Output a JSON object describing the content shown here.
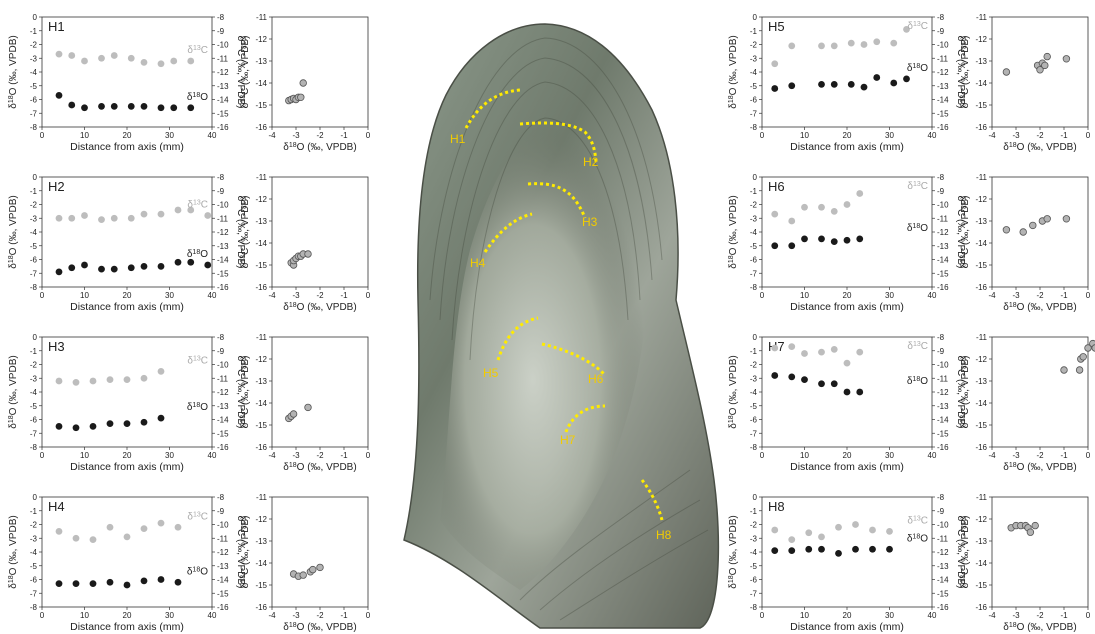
{
  "figure": {
    "style": {
      "d18o_color": "#1a1a1a",
      "d13c_color": "#bdbdbd",
      "cross_marker_fill": "#b3b3b3",
      "cross_marker_stroke": "#555555",
      "hiatus_line_color": "#ffeb00",
      "hiatus_label_color": "#f2cc00"
    },
    "specimen_photo": {
      "description_icon": "stalagmite-section-photo",
      "hiatus_labels": [
        "H1",
        "H2",
        "H3",
        "H4",
        "H5",
        "H6",
        "H7",
        "H8"
      ]
    }
  },
  "chart_data": [
    {
      "type": "scatter",
      "panel": "profile",
      "title": "H1",
      "xlabel": "Distance from axis (mm)",
      "ylabel": "δ18O (‰, VPDB)",
      "y2label": "δ13C (‰, VPDB)",
      "xlim": [
        0,
        40
      ],
      "xticks": [
        0,
        10,
        20,
        30,
        40
      ],
      "ylim": [
        -8,
        0
      ],
      "yticks": [
        0,
        -1,
        -2,
        -3,
        -4,
        -5,
        -6,
        -7,
        -8
      ],
      "y2lim": [
        -16,
        -8
      ],
      "y2ticks": [
        -8,
        -9,
        -10,
        -11,
        -12,
        -13,
        -14,
        -15,
        -16
      ],
      "series": [
        {
          "name": "δ18O",
          "axis": "y",
          "x": [
            4,
            7,
            10,
            14,
            17,
            21,
            24,
            28,
            31,
            35
          ],
          "values": [
            -5.7,
            -6.4,
            -6.6,
            -6.5,
            -6.5,
            -6.5,
            -6.5,
            -6.6,
            -6.6,
            -6.6
          ]
        },
        {
          "name": "δ13C",
          "axis": "y2",
          "x": [
            4,
            7,
            10,
            14,
            17,
            21,
            24,
            28,
            31,
            35
          ],
          "values": [
            -10.7,
            -10.8,
            -11.2,
            -11.0,
            -10.8,
            -11.0,
            -11.3,
            -11.4,
            -11.2,
            -11.2
          ]
        }
      ]
    },
    {
      "type": "scatter",
      "panel": "cross",
      "title": "",
      "xlabel": "δ18O (‰, VPDB)",
      "ylabel": "δ13C (‰, VPDB)",
      "xlim": [
        -4,
        0
      ],
      "xticks": [
        -4,
        -3,
        -2,
        -1,
        0
      ],
      "ylim": [
        -16,
        -11
      ],
      "yticks": [
        -11,
        -12,
        -13,
        -14,
        -15,
        -16
      ],
      "points": [
        [
          -3.3,
          -14.8
        ],
        [
          -3.2,
          -14.75
        ],
        [
          -3.1,
          -14.7
        ],
        [
          -3.0,
          -14.75
        ],
        [
          -2.9,
          -14.65
        ],
        [
          -2.8,
          -14.65
        ],
        [
          -2.7,
          -14.0
        ]
      ]
    },
    {
      "type": "scatter",
      "panel": "profile",
      "title": "H2",
      "xlabel": "Distance from axis (mm)",
      "ylabel": "δ18O (‰, VPDB)",
      "y2label": "δ13C (‰, VPDB)",
      "xlim": [
        0,
        40
      ],
      "xticks": [
        0,
        10,
        20,
        30,
        40
      ],
      "ylim": [
        -8,
        0
      ],
      "yticks": [
        0,
        -1,
        -2,
        -3,
        -4,
        -5,
        -6,
        -7,
        -8
      ],
      "y2lim": [
        -16,
        -8
      ],
      "y2ticks": [
        -8,
        -9,
        -10,
        -11,
        -12,
        -13,
        -14,
        -15,
        -16
      ],
      "series": [
        {
          "name": "δ18O",
          "axis": "y",
          "x": [
            4,
            7,
            10,
            14,
            17,
            21,
            24,
            28,
            32,
            35,
            39
          ],
          "values": [
            -6.9,
            -6.6,
            -6.4,
            -6.7,
            -6.7,
            -6.6,
            -6.5,
            -6.5,
            -6.2,
            -6.2,
            -6.4
          ]
        },
        {
          "name": "δ13C",
          "axis": "y2",
          "x": [
            4,
            7,
            10,
            14,
            17,
            21,
            24,
            28,
            32,
            35,
            39
          ],
          "values": [
            -11.0,
            -11.0,
            -10.8,
            -11.1,
            -11.0,
            -11.0,
            -10.7,
            -10.7,
            -10.4,
            -10.4,
            -10.8
          ]
        }
      ]
    },
    {
      "type": "scatter",
      "panel": "cross",
      "title": "",
      "xlabel": "δ18O (‰, VPDB)",
      "ylabel": "δ13C (‰, VPDB)",
      "xlim": [
        -4,
        0
      ],
      "xticks": [
        -4,
        -3,
        -2,
        -1,
        0
      ],
      "ylim": [
        -16,
        -11
      ],
      "yticks": [
        -11,
        -12,
        -13,
        -14,
        -15,
        -16
      ],
      "points": [
        [
          -3.2,
          -14.9
        ],
        [
          -3.1,
          -15.0
        ],
        [
          -3.1,
          -14.8
        ],
        [
          -3.0,
          -14.7
        ],
        [
          -2.9,
          -14.6
        ],
        [
          -2.8,
          -14.6
        ],
        [
          -2.7,
          -14.5
        ],
        [
          -2.5,
          -14.5
        ]
      ]
    },
    {
      "type": "scatter",
      "panel": "profile",
      "title": "H3",
      "xlabel": "Distance from axis (mm)",
      "ylabel": "δ18O (‰, VPDB)",
      "y2label": "δ13C (‰, VPDB)",
      "xlim": [
        0,
        40
      ],
      "xticks": [
        0,
        10,
        20,
        30,
        40
      ],
      "ylim": [
        -8,
        0
      ],
      "yticks": [
        0,
        -1,
        -2,
        -3,
        -4,
        -5,
        -6,
        -7,
        -8
      ],
      "y2lim": [
        -16,
        -8
      ],
      "y2ticks": [
        -8,
        -9,
        -10,
        -11,
        -12,
        -13,
        -14,
        -15,
        -16
      ],
      "series": [
        {
          "name": "δ18O",
          "axis": "y",
          "x": [
            4,
            8,
            12,
            16,
            20,
            24,
            28
          ],
          "values": [
            -6.5,
            -6.6,
            -6.5,
            -6.3,
            -6.3,
            -6.2,
            -5.9
          ]
        },
        {
          "name": "δ13C",
          "axis": "y2",
          "x": [
            4,
            8,
            12,
            16,
            20,
            24,
            28
          ],
          "values": [
            -11.2,
            -11.3,
            -11.2,
            -11.1,
            -11.1,
            -11.0,
            -10.5
          ]
        }
      ]
    },
    {
      "type": "scatter",
      "panel": "cross",
      "title": "",
      "xlabel": "δ18O (‰, VPDB)",
      "ylabel": "δ13C (‰, VPDB)",
      "xlim": [
        -4,
        0
      ],
      "xticks": [
        -4,
        -3,
        -2,
        -1,
        0
      ],
      "ylim": [
        -16,
        -11
      ],
      "yticks": [
        -11,
        -12,
        -13,
        -14,
        -15,
        -16
      ],
      "points": [
        [
          -3.3,
          -14.7
        ],
        [
          -3.2,
          -14.6
        ],
        [
          -3.1,
          -14.5
        ],
        [
          -2.5,
          -14.2
        ]
      ]
    },
    {
      "type": "scatter",
      "panel": "profile",
      "title": "H4",
      "xlabel": "Distance from axis (mm)",
      "ylabel": "δ18O (‰, VPDB)",
      "y2label": "δ13C (‰, VPDB)",
      "xlim": [
        0,
        40
      ],
      "xticks": [
        0,
        10,
        20,
        30,
        40
      ],
      "ylim": [
        -8,
        0
      ],
      "yticks": [
        0,
        -1,
        -2,
        -3,
        -4,
        -5,
        -6,
        -7,
        -8
      ],
      "y2lim": [
        -16,
        -8
      ],
      "y2ticks": [
        -8,
        -9,
        -10,
        -11,
        -12,
        -13,
        -14,
        -15,
        -16
      ],
      "series": [
        {
          "name": "δ18O",
          "axis": "y",
          "x": [
            4,
            8,
            12,
            16,
            20,
            24,
            28,
            32
          ],
          "values": [
            -6.3,
            -6.3,
            -6.3,
            -6.2,
            -6.4,
            -6.1,
            -6.0,
            -6.2
          ]
        },
        {
          "name": "δ13C",
          "axis": "y2",
          "x": [
            4,
            8,
            12,
            16,
            20,
            24,
            28,
            32
          ],
          "values": [
            -10.5,
            -11.0,
            -11.1,
            -10.2,
            -10.9,
            -10.3,
            -9.9,
            -10.2
          ]
        }
      ]
    },
    {
      "type": "scatter",
      "panel": "cross",
      "title": "",
      "xlabel": "δ18O (‰, VPDB)",
      "ylabel": "δ13C (‰, VPDB)",
      "xlim": [
        -4,
        0
      ],
      "xticks": [
        -4,
        -3,
        -2,
        -1,
        0
      ],
      "ylim": [
        -16,
        -11
      ],
      "yticks": [
        -11,
        -12,
        -13,
        -14,
        -15,
        -16
      ],
      "points": [
        [
          -3.1,
          -14.5
        ],
        [
          -2.9,
          -14.6
        ],
        [
          -2.7,
          -14.55
        ],
        [
          -2.4,
          -14.4
        ],
        [
          -2.3,
          -14.3
        ],
        [
          -2.0,
          -14.2
        ]
      ]
    },
    {
      "type": "scatter",
      "panel": "profile",
      "title": "H5",
      "xlabel": "Distance from axis (mm)",
      "ylabel": "δ18O (‰, VPDB)",
      "y2label": "δ13C (‰, VPDB)",
      "xlim": [
        0,
        40
      ],
      "xticks": [
        0,
        10,
        20,
        30,
        40
      ],
      "ylim": [
        -8,
        0
      ],
      "yticks": [
        0,
        -1,
        -2,
        -3,
        -4,
        -5,
        -6,
        -7,
        -8
      ],
      "y2lim": [
        -16,
        -8
      ],
      "y2ticks": [
        -8,
        -9,
        -10,
        -11,
        -12,
        -13,
        -14,
        -15,
        -16
      ],
      "series": [
        {
          "name": "δ18O",
          "axis": "y",
          "x": [
            3,
            7,
            14,
            17,
            21,
            24,
            27,
            31,
            34
          ],
          "values": [
            -5.2,
            -5.0,
            -4.9,
            -4.9,
            -4.9,
            -5.1,
            -4.4,
            -4.8,
            -4.5
          ]
        },
        {
          "name": "δ13C",
          "axis": "y2",
          "x": [
            3,
            7,
            14,
            17,
            21,
            24,
            27,
            31,
            34
          ],
          "values": [
            -11.4,
            -10.1,
            -10.1,
            -10.1,
            -9.9,
            -10.0,
            -9.8,
            -9.9,
            -8.9
          ]
        }
      ]
    },
    {
      "type": "scatter",
      "panel": "cross",
      "title": "",
      "xlabel": "δ18O (‰, VPDB)",
      "ylabel": "δ13C (‰, VPDB)",
      "xlim": [
        -4,
        0
      ],
      "xticks": [
        -4,
        -3,
        -2,
        -1,
        0
      ],
      "ylim": [
        -16,
        -11
      ],
      "yticks": [
        -11,
        -12,
        -13,
        -14,
        -15,
        -16
      ],
      "points": [
        [
          -3.4,
          -13.5
        ],
        [
          -2.1,
          -13.2
        ],
        [
          -2.0,
          -13.4
        ],
        [
          -1.9,
          -13.1
        ],
        [
          -1.8,
          -13.2
        ],
        [
          -1.7,
          -12.8
        ],
        [
          -0.9,
          -12.9
        ]
      ]
    },
    {
      "type": "scatter",
      "panel": "profile",
      "title": "H6",
      "xlabel": "Distance from axis (mm)",
      "ylabel": "δ18O (‰, VPDB)",
      "y2label": "δ13C (‰, VPDB)",
      "xlim": [
        0,
        40
      ],
      "xticks": [
        0,
        10,
        20,
        30,
        40
      ],
      "ylim": [
        -8,
        0
      ],
      "yticks": [
        0,
        -1,
        -2,
        -3,
        -4,
        -5,
        -6,
        -7,
        -8
      ],
      "y2lim": [
        -16,
        -8
      ],
      "y2ticks": [
        -8,
        -9,
        -10,
        -11,
        -12,
        -13,
        -14,
        -15,
        -16
      ],
      "series": [
        {
          "name": "δ18O",
          "axis": "y",
          "x": [
            3,
            7,
            10,
            14,
            17,
            20,
            23
          ],
          "values": [
            -5.0,
            -5.0,
            -4.5,
            -4.5,
            -4.7,
            -4.6,
            -4.5
          ]
        },
        {
          "name": "δ13C",
          "axis": "y2",
          "x": [
            3,
            7,
            10,
            14,
            17,
            20,
            23
          ],
          "values": [
            -10.7,
            -11.2,
            -10.2,
            -10.2,
            -10.5,
            -10.0,
            -9.2
          ]
        }
      ]
    },
    {
      "type": "scatter",
      "panel": "cross",
      "title": "",
      "xlabel": "δ18O (‰, VPDB)",
      "ylabel": "δ13C (‰, VPDB)",
      "xlim": [
        -4,
        0
      ],
      "xticks": [
        -4,
        -3,
        -2,
        -1,
        0
      ],
      "ylim": [
        -16,
        -11
      ],
      "yticks": [
        -11,
        -12,
        -13,
        -14,
        -15,
        -16
      ],
      "points": [
        [
          -3.4,
          -13.4
        ],
        [
          -2.7,
          -13.5
        ],
        [
          -2.3,
          -13.2
        ],
        [
          -1.9,
          -13.0
        ],
        [
          -1.7,
          -12.9
        ],
        [
          -0.9,
          -12.9
        ]
      ]
    },
    {
      "type": "scatter",
      "panel": "profile",
      "title": "H7",
      "xlabel": "Distance from axis (mm)",
      "ylabel": "δ18O (‰, VPDB)",
      "y2label": "δ13C (‰, VPDB)",
      "xlim": [
        0,
        40
      ],
      "xticks": [
        0,
        10,
        20,
        30,
        40
      ],
      "ylim": [
        -8,
        0
      ],
      "yticks": [
        0,
        -1,
        -2,
        -3,
        -4,
        -5,
        -6,
        -7,
        -8
      ],
      "y2lim": [
        -16,
        -8
      ],
      "y2ticks": [
        -8,
        -9,
        -10,
        -11,
        -12,
        -13,
        -14,
        -15,
        -16
      ],
      "series": [
        {
          "name": "δ18O",
          "axis": "y",
          "x": [
            3,
            7,
            10,
            14,
            17,
            20,
            23
          ],
          "values": [
            -2.8,
            -2.9,
            -3.1,
            -3.4,
            -3.4,
            -4.0,
            -4.0
          ]
        },
        {
          "name": "δ13C",
          "axis": "y2",
          "x": [
            3,
            7,
            10,
            14,
            17,
            20,
            23
          ],
          "values": [
            -8.8,
            -8.7,
            -9.2,
            -9.1,
            -8.9,
            -9.9,
            -9.1
          ]
        }
      ]
    },
    {
      "type": "scatter",
      "panel": "cross",
      "title": "",
      "xlabel": "δ18O (‰, VPDB)",
      "ylabel": "δ13C (‰, VPDB)",
      "xlim": [
        -4,
        0
      ],
      "xticks": [
        -4,
        -3,
        -2,
        -1,
        0
      ],
      "ylim": [
        -16,
        -11
      ],
      "yticks": [
        -11,
        -12,
        -13,
        -14,
        -15,
        -16
      ],
      "points": [
        [
          -1.0,
          -12.5
        ],
        [
          -0.35,
          -12.5
        ],
        [
          -0.3,
          -12.0
        ],
        [
          -0.2,
          -11.9
        ],
        [
          0.0,
          -11.5
        ],
        [
          0.2,
          -11.3
        ],
        [
          0.3,
          -11.5
        ]
      ]
    },
    {
      "type": "scatter",
      "panel": "profile",
      "title": "H8",
      "xlabel": "Distance from axis (mm)",
      "ylabel": "δ18O (‰, VPDB)",
      "y2label": "δ13C (‰, VPDB)",
      "xlim": [
        0,
        40
      ],
      "xticks": [
        0,
        10,
        20,
        30,
        40
      ],
      "ylim": [
        -8,
        0
      ],
      "yticks": [
        0,
        -1,
        -2,
        -3,
        -4,
        -5,
        -6,
        -7,
        -8
      ],
      "y2lim": [
        -16,
        -8
      ],
      "y2ticks": [
        -8,
        -9,
        -10,
        -11,
        -12,
        -13,
        -14,
        -15,
        -16
      ],
      "series": [
        {
          "name": "δ18O",
          "axis": "y",
          "x": [
            3,
            7,
            11,
            14,
            18,
            22,
            26,
            30
          ],
          "values": [
            -3.9,
            -3.9,
            -3.8,
            -3.8,
            -4.1,
            -3.8,
            -3.8,
            -3.8
          ]
        },
        {
          "name": "δ13C",
          "axis": "y2",
          "x": [
            3,
            7,
            11,
            14,
            18,
            22,
            26,
            30
          ],
          "values": [
            -10.4,
            -11.1,
            -10.6,
            -10.9,
            -10.2,
            -10.0,
            -10.4,
            -10.5
          ]
        }
      ]
    },
    {
      "type": "scatter",
      "panel": "cross",
      "title": "",
      "xlabel": "δ18O (‰, VPDB)",
      "ylabel": "δ13C (‰, VPDB)",
      "xlim": [
        -4,
        0
      ],
      "xticks": [
        -4,
        -3,
        -2,
        -1,
        0
      ],
      "ylim": [
        -16,
        -11
      ],
      "yticks": [
        -11,
        -12,
        -13,
        -14,
        -15,
        -16
      ],
      "points": [
        [
          -3.2,
          -12.4
        ],
        [
          -3.0,
          -12.3
        ],
        [
          -2.8,
          -12.3
        ],
        [
          -2.6,
          -12.3
        ],
        [
          -2.5,
          -12.4
        ],
        [
          -2.4,
          -12.6
        ],
        [
          -2.2,
          -12.3
        ]
      ]
    }
  ]
}
